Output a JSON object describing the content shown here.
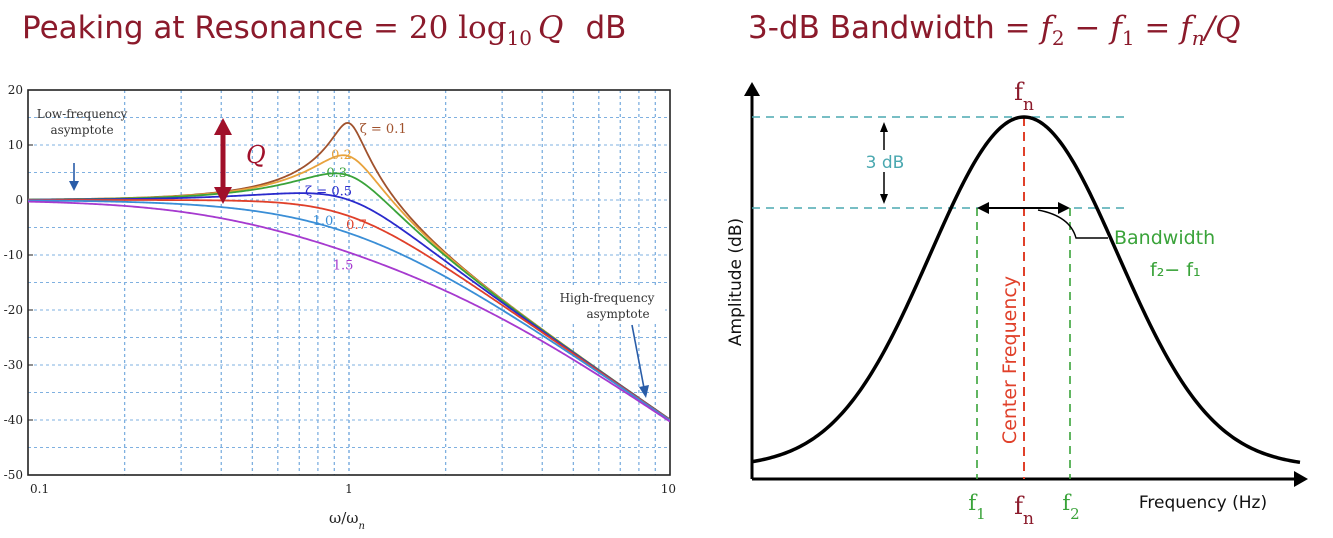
{
  "headings": {
    "left": {
      "text_a": "Peaking at Resonance",
      "eq": " = ",
      "coef": "20 log",
      "base": "10",
      "var": "Q",
      "unit": "dB"
    },
    "right": {
      "text_a": "3-dB Bandwidth",
      "eq1": " = ",
      "f2": "f",
      "f2_sub": "2",
      "minus": " − ",
      "f1": "f",
      "f1_sub": "1",
      "eq2": " = ",
      "fn": "f",
      "fn_sub": "n",
      "slash_q": "/Q"
    }
  },
  "chart_data": [
    {
      "type": "line",
      "title": "",
      "xlabel": "ω/ωn",
      "ylabel": "",
      "x_scale": "log",
      "xlim": [
        0.1,
        10
      ],
      "ylim": [
        -50,
        20
      ],
      "y_ticks": [
        "20",
        "10",
        "0",
        "-10",
        "-20",
        "-30",
        "-40",
        "-50"
      ],
      "x_ticks": [
        "0.1",
        "1",
        "10"
      ],
      "grid": true,
      "series": [
        {
          "name": "ζ = 0.1",
          "zeta": 0.1,
          "color": "#a0522d"
        },
        {
          "name": "0.2",
          "zeta": 0.2,
          "color": "#e8a33d"
        },
        {
          "name": "0.3",
          "zeta": 0.3,
          "color": "#3aa33a"
        },
        {
          "name": "ζ = 0.5",
          "zeta": 0.5,
          "color": "#2a2acc"
        },
        {
          "name": "0.7",
          "zeta": 0.7,
          "color": "#e0402a"
        },
        {
          "name": "1.0",
          "zeta": 1.0,
          "color": "#3a8ed6"
        },
        {
          "name": "1.5",
          "zeta": 1.5,
          "color": "#a63acf"
        }
      ],
      "annotations": {
        "low_freq": [
          "Low-frequency",
          "asymptote"
        ],
        "high_freq": [
          "High-frequency",
          "asymptote"
        ],
        "q_label": "Q"
      }
    },
    {
      "type": "line",
      "title": "",
      "xlabel": "Frequency (Hz)",
      "ylabel": "Amplitude (dB)",
      "annotations": {
        "three_db": "3 dB",
        "bandwidth": "Bandwidth",
        "bandwidth_formula": "f₂− f₁",
        "center_frequency": "Center Frequency",
        "fn_top": "fn",
        "f1_tick": "f1",
        "fn_tick": "fn",
        "f2_tick": "f2"
      },
      "colors": {
        "curve": "#000000",
        "center_line": "#e0402a",
        "bandwidth_lines": "#3aa33a",
        "level_lines": "#4aa8b0",
        "bandwidth_text": "#3aa33a",
        "fn_text": "#8b1a2b"
      }
    }
  ]
}
